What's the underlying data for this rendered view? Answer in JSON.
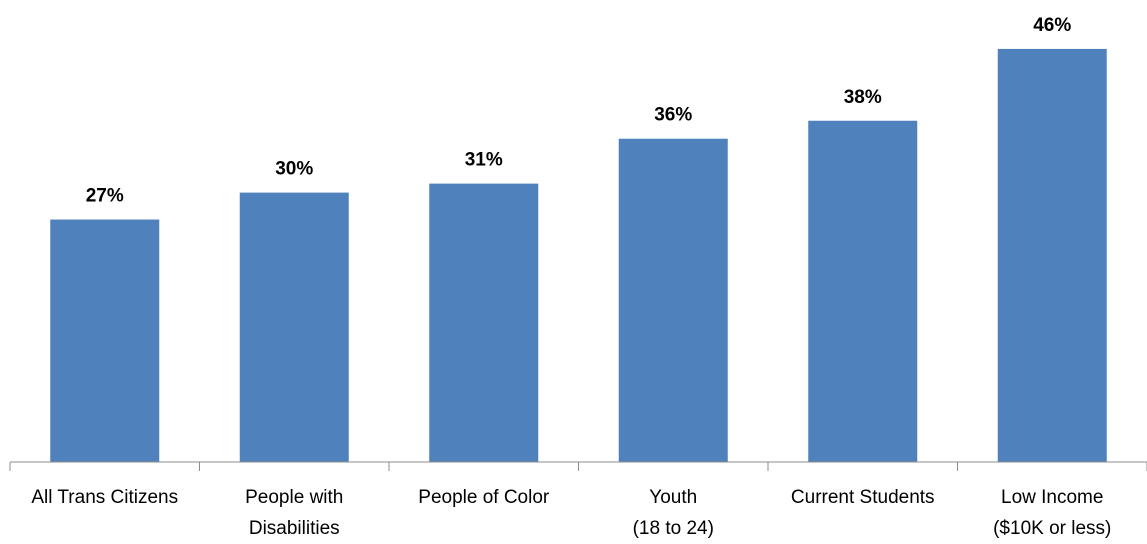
{
  "chart_data": {
    "type": "bar",
    "categories": [
      [
        "All Trans Citizens"
      ],
      [
        "People with",
        "Disabilities"
      ],
      [
        "People of Color"
      ],
      [
        "Youth",
        "(18 to 24)"
      ],
      [
        "Current Students"
      ],
      [
        "Low Income",
        "($10K or less)"
      ]
    ],
    "values": [
      27,
      30,
      31,
      36,
      38,
      46
    ],
    "value_labels": [
      "27%",
      "30%",
      "31%",
      "36%",
      "38%",
      "46%"
    ],
    "ylim": [
      0,
      50
    ],
    "bar_color": "#4f81bd",
    "grid": false,
    "legend": "none"
  }
}
